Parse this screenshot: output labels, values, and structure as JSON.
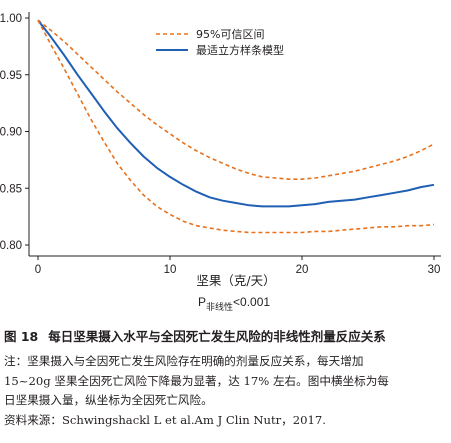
{
  "figure": {
    "number": "图 18",
    "title": "每日坚果摄入水平与全因死亡发生风险的非线性剂量反应关系"
  },
  "notes": {
    "lines": [
      "注：坚果摄入与全因死亡发生风险存在明确的剂量反应关系，每天增加",
      "15~20g 坚果全因死亡风险下降最为显著，达 17% 左右。图中横坐标为每",
      "日坚果摄入量，纵坐标为全因死亡风险。",
      "资料来源：Schwingshackl L et al.Am J Clin Nutr，2017."
    ]
  },
  "chart_data": {
    "type": "line",
    "xlabel": "坚果（克/天）",
    "ylabel": "",
    "p_value": {
      "prefix": "P",
      "subscript": "非线性",
      "text": "<0.001"
    },
    "xlim": [
      0,
      30
    ],
    "ylim": [
      0.79,
      1.01
    ],
    "x_ticks": [
      0,
      10,
      20,
      30
    ],
    "x_tick_labels": [
      "0",
      "10",
      "20",
      "30"
    ],
    "y_ticks": [
      0.8,
      0.85,
      0.9,
      0.95,
      1.0
    ],
    "y_tick_labels": [
      "0.80",
      "0.85",
      "0.90",
      "0.95",
      "1.00"
    ],
    "legend_position": "top-center",
    "series": [
      {
        "name": "95%可信区间",
        "style": "dashed",
        "color": "#e8711c",
        "x": [
          0,
          1,
          2,
          3,
          4,
          5,
          6,
          7,
          8,
          9,
          10,
          11,
          12,
          13,
          14,
          15,
          16,
          17,
          18,
          19,
          20,
          21,
          22,
          23,
          24,
          25,
          26,
          27,
          28,
          29,
          30
        ],
        "values": [
          0.998,
          0.989,
          0.979,
          0.968,
          0.957,
          0.946,
          0.935,
          0.925,
          0.915,
          0.906,
          0.898,
          0.89,
          0.883,
          0.877,
          0.872,
          0.867,
          0.863,
          0.86,
          0.859,
          0.858,
          0.858,
          0.859,
          0.861,
          0.863,
          0.865,
          0.868,
          0.871,
          0.874,
          0.878,
          0.883,
          0.889
        ]
      },
      {
        "name": "最适立方样条模型",
        "style": "solid",
        "color": "#1f5fb4",
        "x": [
          0,
          1,
          2,
          3,
          4,
          5,
          6,
          7,
          8,
          9,
          10,
          11,
          12,
          13,
          14,
          15,
          16,
          17,
          18,
          19,
          20,
          21,
          22,
          23,
          24,
          25,
          26,
          27,
          28,
          29,
          30
        ],
        "values": [
          0.998,
          0.983,
          0.967,
          0.95,
          0.934,
          0.918,
          0.903,
          0.89,
          0.878,
          0.868,
          0.86,
          0.853,
          0.847,
          0.842,
          0.839,
          0.837,
          0.835,
          0.834,
          0.834,
          0.834,
          0.835,
          0.836,
          0.838,
          0.839,
          0.84,
          0.842,
          0.844,
          0.846,
          0.848,
          0.851,
          0.853
        ]
      },
      {
        "name": "",
        "style": "dashed",
        "color": "#e8711c",
        "x": [
          0,
          1,
          2,
          3,
          4,
          5,
          6,
          7,
          8,
          9,
          10,
          11,
          12,
          13,
          14,
          15,
          16,
          17,
          18,
          19,
          20,
          21,
          22,
          23,
          24,
          25,
          26,
          27,
          28,
          29,
          30
        ],
        "values": [
          0.998,
          0.976,
          0.955,
          0.933,
          0.911,
          0.891,
          0.872,
          0.857,
          0.844,
          0.834,
          0.827,
          0.821,
          0.817,
          0.815,
          0.813,
          0.812,
          0.811,
          0.811,
          0.811,
          0.811,
          0.811,
          0.812,
          0.812,
          0.813,
          0.814,
          0.815,
          0.816,
          0.816,
          0.817,
          0.817,
          0.818
        ]
      }
    ]
  }
}
